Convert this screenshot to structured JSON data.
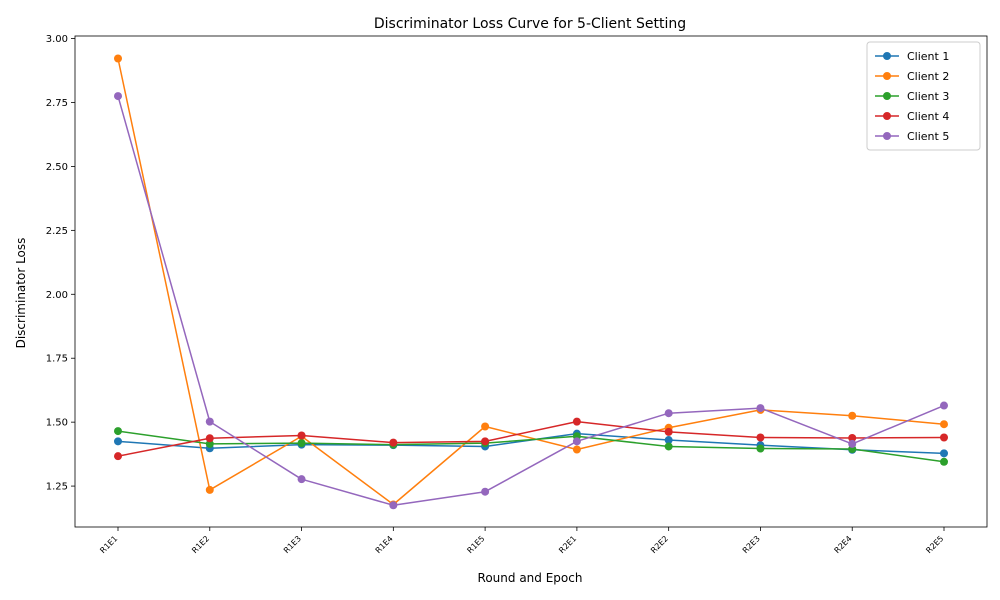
{
  "chart_data": {
    "type": "line",
    "title": "Discriminator Loss Curve for 5-Client Setting",
    "xlabel": "Round and Epoch",
    "ylabel": "Discriminator Loss",
    "categories": [
      "R1E1",
      "R1E2",
      "R1E3",
      "R1E4",
      "R1E5",
      "R2E1",
      "R2E2",
      "R2E3",
      "R2E4",
      "R2E5"
    ],
    "ylim": [
      1.09,
      3.01
    ],
    "yticks": [
      "1.25",
      "1.50",
      "1.75",
      "2.00",
      "2.25",
      "2.50",
      "2.75",
      "3.00"
    ],
    "grid": false,
    "legend_position": "top-right",
    "series": [
      {
        "name": "Client 1",
        "color": "#1f77b4",
        "values": [
          1.425,
          1.398,
          1.412,
          1.41,
          1.405,
          1.455,
          1.43,
          1.41,
          1.392,
          1.378
        ]
      },
      {
        "name": "Client 2",
        "color": "#ff7f0e",
        "values": [
          2.922,
          1.235,
          1.445,
          1.178,
          1.483,
          1.393,
          1.478,
          1.548,
          1.525,
          1.492
        ]
      },
      {
        "name": "Client 3",
        "color": "#2ca02c",
        "values": [
          1.465,
          1.415,
          1.418,
          1.412,
          1.418,
          1.445,
          1.405,
          1.397,
          1.395,
          1.345
        ]
      },
      {
        "name": "Client 4",
        "color": "#d62728",
        "values": [
          1.367,
          1.437,
          1.448,
          1.42,
          1.425,
          1.502,
          1.462,
          1.44,
          1.438,
          1.44
        ]
      },
      {
        "name": "Client 5",
        "color": "#9467bd",
        "values": [
          2.775,
          1.502,
          1.277,
          1.175,
          1.228,
          1.425,
          1.535,
          1.555,
          1.415,
          1.565
        ]
      }
    ]
  }
}
